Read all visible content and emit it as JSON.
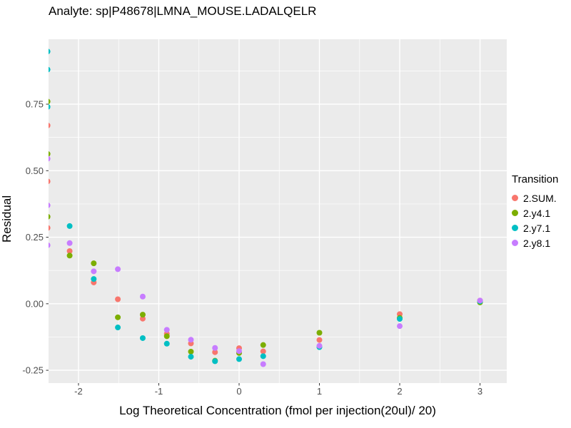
{
  "chart_data": {
    "type": "scatter",
    "title": "Analyte: sp|P48678|LMNA_MOUSE.LADALQELR",
    "xlabel": "Log Theoretical Concentration (fmol per injection(20ul)/ 20)",
    "ylabel": "Residual",
    "legend_title": "Transition",
    "legend_position": "right",
    "grid": "on",
    "panel_color": "#EBEBEB",
    "grid_color": "#FFFFFF",
    "tick_text_color": "#4d4d4d",
    "tick_mark_color": "#333333",
    "xlim": [
      -2.373,
      3.333
    ],
    "ylim": [
      -0.298,
      0.994
    ],
    "x_ticks": [
      {
        "v": -2,
        "label": "-2"
      },
      {
        "v": -1,
        "label": "-1"
      },
      {
        "v": 0,
        "label": "0"
      },
      {
        "v": 1,
        "label": "1"
      },
      {
        "v": 2,
        "label": "2"
      },
      {
        "v": 3,
        "label": "3"
      }
    ],
    "y_ticks": [
      {
        "v": -0.25,
        "label": "-0.25"
      },
      {
        "v": 0.0,
        "label": "0.00"
      },
      {
        "v": 0.25,
        "label": "0.25"
      },
      {
        "v": 0.5,
        "label": "0.50"
      },
      {
        "v": 0.75,
        "label": "0.75"
      }
    ],
    "x_minor": [
      -1.5,
      -0.5,
      0.5,
      1.5,
      2.5
    ],
    "y_minor": [
      -0.125,
      0.125,
      0.375,
      0.625,
      0.875
    ],
    "point_radius": 4,
    "series": [
      {
        "name": "2.SUM.",
        "color": "#F8766D",
        "points": [
          [
            -2.385,
            0.67
          ],
          [
            -2.385,
            0.46
          ],
          [
            -2.385,
            0.285
          ],
          [
            -2.11,
            0.198
          ],
          [
            -1.81,
            0.08
          ],
          [
            -1.51,
            0.017
          ],
          [
            -1.2,
            -0.056
          ],
          [
            -0.9,
            -0.113
          ],
          [
            -0.6,
            -0.149
          ],
          [
            -0.3,
            -0.182
          ],
          [
            0,
            -0.167
          ],
          [
            0.3,
            -0.179
          ],
          [
            1,
            -0.136
          ],
          [
            2,
            -0.039
          ],
          [
            3,
            0.012
          ]
        ]
      },
      {
        "name": "2.y4.1",
        "color": "#7CAE00",
        "points": [
          [
            -2.385,
            0.76
          ],
          [
            -2.385,
            0.563
          ],
          [
            -2.385,
            0.327
          ],
          [
            -2.11,
            0.181
          ],
          [
            -1.81,
            0.152
          ],
          [
            -1.51,
            -0.051
          ],
          [
            -1.2,
            -0.041
          ],
          [
            -0.9,
            -0.122
          ],
          [
            -0.6,
            -0.18
          ],
          [
            -0.3,
            -0.214
          ],
          [
            0,
            -0.185
          ],
          [
            0.3,
            -0.155
          ],
          [
            1,
            -0.109
          ],
          [
            2,
            -0.053
          ],
          [
            3,
            0.005
          ]
        ]
      },
      {
        "name": "2.y7.1",
        "color": "#00BFC4",
        "points": [
          [
            -2.385,
            0.948
          ],
          [
            -2.385,
            0.88
          ],
          [
            -2.385,
            0.74
          ],
          [
            -2.11,
            0.292
          ],
          [
            -1.81,
            0.093
          ],
          [
            -1.51,
            -0.089
          ],
          [
            -1.2,
            -0.129
          ],
          [
            -0.9,
            -0.15
          ],
          [
            -0.6,
            -0.199
          ],
          [
            -0.3,
            -0.216
          ],
          [
            0,
            -0.208
          ],
          [
            0.3,
            -0.197
          ],
          [
            1,
            -0.163
          ],
          [
            2,
            -0.057
          ],
          [
            3,
            0.009
          ]
        ]
      },
      {
        "name": "2.y8.1",
        "color": "#C77CFF",
        "points": [
          [
            -2.385,
            0.545
          ],
          [
            -2.385,
            0.37
          ],
          [
            -2.385,
            0.22
          ],
          [
            -2.11,
            0.228
          ],
          [
            -1.81,
            0.122
          ],
          [
            -1.51,
            0.13
          ],
          [
            -1.2,
            0.027
          ],
          [
            -0.9,
            -0.098
          ],
          [
            -0.6,
            -0.135
          ],
          [
            -0.3,
            -0.166
          ],
          [
            0,
            -0.178
          ],
          [
            0.3,
            -0.227
          ],
          [
            1,
            -0.158
          ],
          [
            2,
            -0.084
          ],
          [
            3,
            0.012
          ]
        ]
      }
    ]
  }
}
